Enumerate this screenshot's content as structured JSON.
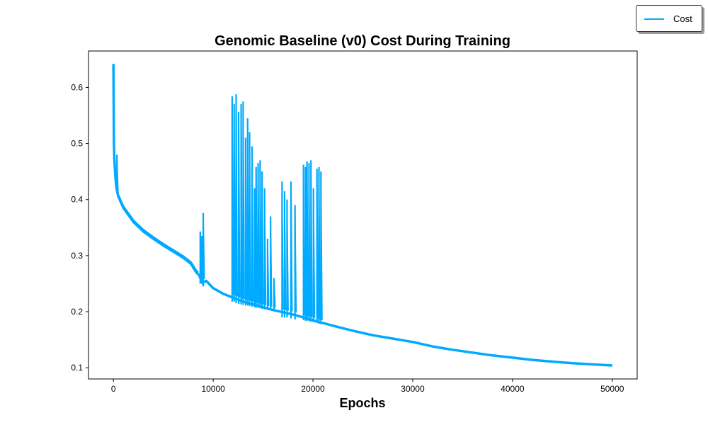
{
  "chart_data": {
    "type": "line",
    "title": "Genomic Baseline (v0) Cost During Training",
    "xlabel": "Epochs",
    "ylabel": "",
    "xlim": [
      -2500,
      52500
    ],
    "ylim": [
      0.08,
      0.665
    ],
    "x_ticks": [
      0,
      10000,
      20000,
      30000,
      40000,
      50000
    ],
    "x_tick_labels": [
      "0",
      "10000",
      "20000",
      "30000",
      "40000",
      "50000"
    ],
    "y_ticks": [
      0.1,
      0.2,
      0.3,
      0.4,
      0.5,
      0.6
    ],
    "y_tick_labels": [
      "0.1",
      "0.2",
      "0.3",
      "0.4",
      "0.5",
      "0.6"
    ],
    "grid": false,
    "legend_position": "top-right (outside plot)",
    "series": [
      {
        "name": "Cost",
        "color": "#00aaff",
        "x": [
          0,
          50,
          100,
          200,
          300,
          500,
          1000,
          2000,
          3000,
          4000,
          5000,
          6000,
          7000,
          7800,
          8300,
          8600,
          8700,
          8800,
          8900,
          9000,
          9100,
          9300,
          10000,
          11000,
          12000,
          13000,
          14000,
          15000,
          16000,
          17000,
          18000,
          19000,
          20000,
          20800,
          21000,
          22000,
          24000,
          26000,
          28000,
          30000,
          32000,
          34000,
          36000,
          38000,
          40000,
          42000,
          44000,
          46000,
          48000,
          50000
        ],
        "y": [
          0.642,
          0.5,
          0.47,
          0.44,
          0.42,
          0.405,
          0.385,
          0.36,
          0.343,
          0.33,
          0.318,
          0.307,
          0.296,
          0.285,
          0.27,
          0.265,
          0.26,
          0.257,
          0.255,
          0.254,
          0.253,
          0.255,
          0.242,
          0.232,
          0.225,
          0.218,
          0.213,
          0.208,
          0.203,
          0.199,
          0.195,
          0.19,
          0.185,
          0.18,
          0.18,
          0.175,
          0.166,
          0.158,
          0.152,
          0.146,
          0.138,
          0.132,
          0.127,
          0.122,
          0.118,
          0.114,
          0.111,
          0.108,
          0.106,
          0.104
        ]
      }
    ],
    "spikes": [
      {
        "x": 350,
        "min": 0.41,
        "max": 0.48
      },
      {
        "x": 8700,
        "min": 0.25,
        "max": 0.343
      },
      {
        "x": 8850,
        "min": 0.25,
        "max": 0.335
      },
      {
        "x": 8950,
        "min": 0.248,
        "max": 0.33
      },
      {
        "x": 9000,
        "min": 0.245,
        "max": 0.376
      },
      {
        "x": 11900,
        "min": 0.218,
        "max": 0.584
      },
      {
        "x": 12100,
        "min": 0.218,
        "max": 0.57
      },
      {
        "x": 12300,
        "min": 0.215,
        "max": 0.588
      },
      {
        "x": 12550,
        "min": 0.214,
        "max": 0.556
      },
      {
        "x": 12800,
        "min": 0.213,
        "max": 0.57
      },
      {
        "x": 13000,
        "min": 0.212,
        "max": 0.575
      },
      {
        "x": 13250,
        "min": 0.211,
        "max": 0.51
      },
      {
        "x": 13450,
        "min": 0.211,
        "max": 0.545
      },
      {
        "x": 13650,
        "min": 0.21,
        "max": 0.52
      },
      {
        "x": 13900,
        "min": 0.209,
        "max": 0.495
      },
      {
        "x": 14150,
        "min": 0.208,
        "max": 0.42
      },
      {
        "x": 14300,
        "min": 0.207,
        "max": 0.458
      },
      {
        "x": 14500,
        "min": 0.207,
        "max": 0.465
      },
      {
        "x": 14700,
        "min": 0.206,
        "max": 0.47
      },
      {
        "x": 14900,
        "min": 0.205,
        "max": 0.45
      },
      {
        "x": 15150,
        "min": 0.204,
        "max": 0.42
      },
      {
        "x": 15450,
        "min": 0.203,
        "max": 0.33
      },
      {
        "x": 15750,
        "min": 0.202,
        "max": 0.37
      },
      {
        "x": 16100,
        "min": 0.201,
        "max": 0.26
      },
      {
        "x": 16900,
        "min": 0.19,
        "max": 0.432
      },
      {
        "x": 17150,
        "min": 0.19,
        "max": 0.415
      },
      {
        "x": 17400,
        "min": 0.19,
        "max": 0.4
      },
      {
        "x": 17800,
        "min": 0.188,
        "max": 0.432
      },
      {
        "x": 18200,
        "min": 0.186,
        "max": 0.39
      },
      {
        "x": 19050,
        "min": 0.185,
        "max": 0.462
      },
      {
        "x": 19250,
        "min": 0.184,
        "max": 0.458
      },
      {
        "x": 19400,
        "min": 0.184,
        "max": 0.468
      },
      {
        "x": 19600,
        "min": 0.183,
        "max": 0.465
      },
      {
        "x": 19800,
        "min": 0.182,
        "max": 0.47
      },
      {
        "x": 20050,
        "min": 0.181,
        "max": 0.42
      },
      {
        "x": 20400,
        "min": 0.18,
        "max": 0.455
      },
      {
        "x": 20600,
        "min": 0.179,
        "max": 0.458
      },
      {
        "x": 20800,
        "min": 0.178,
        "max": 0.45
      }
    ]
  }
}
